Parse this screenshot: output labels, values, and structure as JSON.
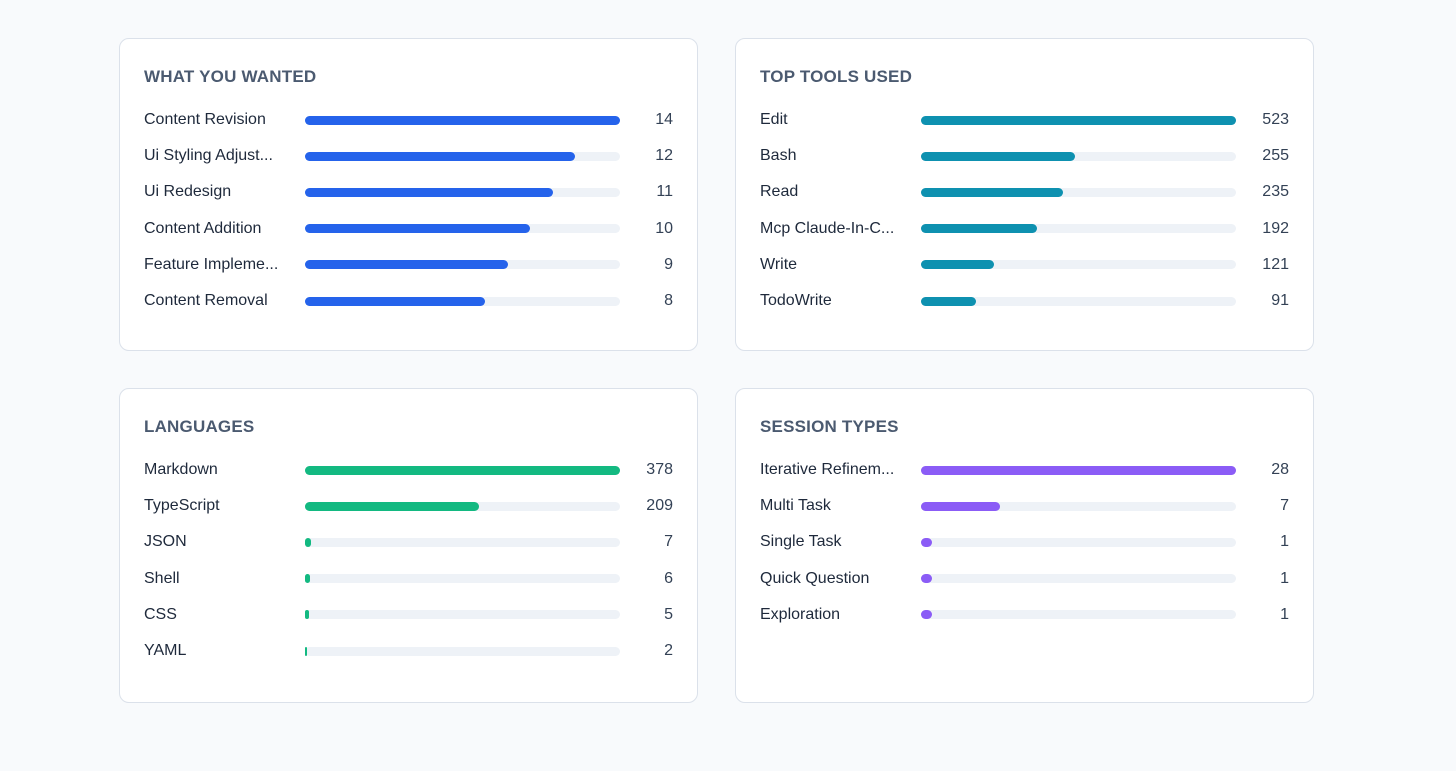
{
  "colors": {
    "wanted": "#2563eb",
    "tools": "#0e91b0",
    "languages": "#13b981",
    "sessions": "#8b5cf6"
  },
  "chart_data": [
    {
      "type": "bar",
      "orientation": "horizontal",
      "title": "WHAT YOU WANTED",
      "color_key": "wanted",
      "categories": [
        "Content Revision",
        "Ui Styling Adjust...",
        "Ui Redesign",
        "Content Addition",
        "Feature Impleme...",
        "Content Removal"
      ],
      "values": [
        14,
        12,
        11,
        10,
        9,
        8
      ]
    },
    {
      "type": "bar",
      "orientation": "horizontal",
      "title": "TOP TOOLS USED",
      "color_key": "tools",
      "categories": [
        "Edit",
        "Bash",
        "Read",
        "Mcp Claude-In-C...",
        "Write",
        "TodoWrite"
      ],
      "values": [
        523,
        255,
        235,
        192,
        121,
        91
      ]
    },
    {
      "type": "bar",
      "orientation": "horizontal",
      "title": "LANGUAGES",
      "color_key": "languages",
      "categories": [
        "Markdown",
        "TypeScript",
        "JSON",
        "Shell",
        "CSS",
        "YAML"
      ],
      "values": [
        378,
        209,
        7,
        6,
        5,
        2
      ]
    },
    {
      "type": "bar",
      "orientation": "horizontal",
      "title": "SESSION TYPES",
      "color_key": "sessions",
      "categories": [
        "Iterative Refinem...",
        "Multi Task",
        "Single Task",
        "Quick Question",
        "Exploration"
      ],
      "values": [
        28,
        7,
        1,
        1,
        1
      ]
    }
  ]
}
